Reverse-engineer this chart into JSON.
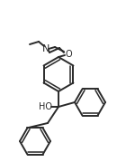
{
  "bg_color": "#ffffff",
  "line_color": "#2a2a2a",
  "lw": 1.4,
  "text_color": "#2a2a2a",
  "figsize": [
    1.3,
    1.79
  ],
  "dpi": 100,
  "N_label": "N",
  "O_label": "O",
  "HO_label": "HO"
}
